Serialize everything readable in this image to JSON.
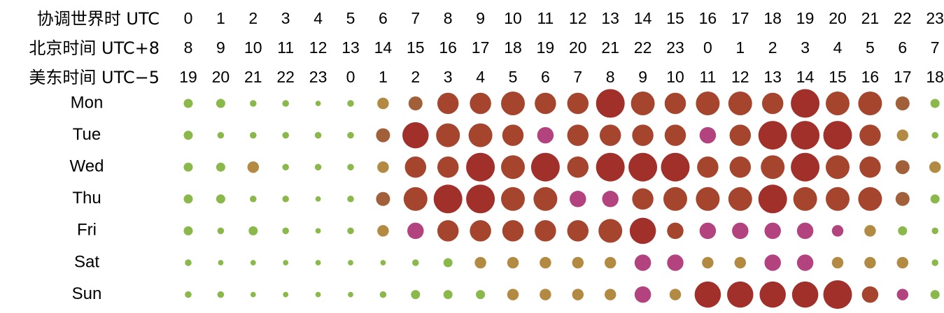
{
  "chart_data": {
    "type": "scatter",
    "header_rows": [
      {
        "label": "协调世界时 UTC",
        "ticks": [
          "0",
          "1",
          "2",
          "3",
          "4",
          "5",
          "6",
          "7",
          "8",
          "9",
          "10",
          "11",
          "12",
          "13",
          "14",
          "15",
          "16",
          "17",
          "18",
          "19",
          "20",
          "21",
          "22",
          "23"
        ]
      },
      {
        "label": "北京时间 UTC+8",
        "ticks": [
          "8",
          "9",
          "10",
          "11",
          "12",
          "13",
          "14",
          "15",
          "16",
          "17",
          "18",
          "19",
          "20",
          "21",
          "22",
          "23",
          "0",
          "1",
          "2",
          "3",
          "4",
          "5",
          "6",
          "7"
        ]
      },
      {
        "label": "美东时间 UTC−5",
        "ticks": [
          "19",
          "20",
          "21",
          "22",
          "23",
          "0",
          "1",
          "2",
          "3",
          "4",
          "5",
          "6",
          "7",
          "8",
          "9",
          "10",
          "11",
          "12",
          "13",
          "14",
          "15",
          "16",
          "17",
          "18"
        ]
      }
    ],
    "days": [
      "Mon",
      "Tue",
      "Wed",
      "Thu",
      "Fri",
      "Sat",
      "Sun"
    ],
    "values": [
      [
        2,
        2,
        1,
        1,
        0.5,
        1,
        3,
        4,
        7,
        7,
        8,
        7,
        7,
        10,
        8,
        7,
        8,
        8,
        7,
        10,
        8,
        8,
        4,
        2
      ],
      [
        2,
        1,
        1,
        1,
        1,
        1,
        4,
        9,
        8,
        8,
        7,
        5,
        7,
        7,
        7,
        7,
        5,
        7,
        10,
        10,
        10,
        7,
        3,
        1
      ],
      [
        2,
        2,
        3,
        1,
        1,
        1,
        3,
        7,
        7,
        10,
        8,
        10,
        7,
        10,
        10,
        10,
        7,
        7,
        8,
        10,
        8,
        7,
        4,
        3
      ],
      [
        2,
        2,
        1,
        1,
        0.5,
        1,
        4,
        8,
        10,
        10,
        8,
        8,
        5,
        5,
        7,
        8,
        8,
        8,
        10,
        8,
        8,
        8,
        4,
        2
      ],
      [
        2,
        1,
        2,
        1,
        0.5,
        1,
        3,
        5,
        7,
        7,
        7,
        7,
        7,
        8,
        9,
        5,
        5,
        5,
        5,
        5,
        3,
        3,
        2,
        1
      ],
      [
        1,
        0.5,
        0.5,
        0.5,
        0.5,
        0.5,
        0.5,
        1,
        2,
        3,
        3,
        3,
        3,
        3,
        5,
        5,
        3,
        3,
        5,
        5,
        3,
        3,
        3,
        1
      ],
      [
        1,
        1,
        0.5,
        0.5,
        0.5,
        0.5,
        1,
        2,
        2,
        2,
        3,
        3,
        3,
        3,
        5,
        3,
        9,
        9,
        9,
        9,
        10,
        5,
        3,
        2
      ]
    ],
    "colors": {
      "green": "#8ab84a",
      "khaki": "#c4ae4e",
      "tan": "#b38a42",
      "brown": "#a1603a",
      "rust": "#a5452e",
      "red": "#a12f2a",
      "magenta": "#b2437f"
    },
    "grid": false,
    "legend": "none"
  }
}
